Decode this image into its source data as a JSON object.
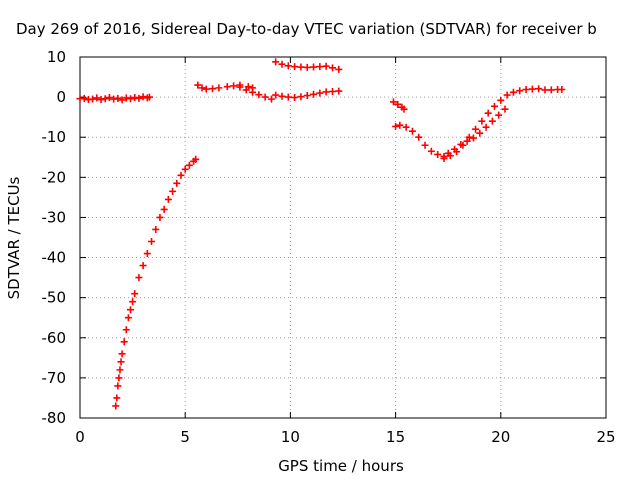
{
  "chart_data": {
    "type": "scatter",
    "title": "Day 269 of 2016, Sidereal Day-to-day VTEC variation (SDTVAR) for receiver b",
    "xlabel": "GPS time / hours",
    "ylabel": "SDTVAR / TECUs",
    "xlim": [
      0,
      25
    ],
    "ylim": [
      -80,
      10
    ],
    "xticks": [
      0,
      5,
      10,
      15,
      20,
      25
    ],
    "yticks": [
      10,
      0,
      -10,
      -20,
      -30,
      -40,
      -50,
      -60,
      -70,
      -80
    ],
    "grid": true,
    "marker": "+",
    "color": "#ff0000",
    "series": [
      {
        "points": [
          [
            0.0,
            -0.4
          ],
          [
            0.2,
            -0.3
          ],
          [
            0.4,
            -0.6
          ],
          [
            0.6,
            -0.5
          ],
          [
            0.8,
            -0.2
          ],
          [
            1.0,
            -0.6
          ],
          [
            1.2,
            -0.4
          ],
          [
            1.4,
            -0.1
          ],
          [
            1.6,
            -0.5
          ],
          [
            1.8,
            -0.3
          ],
          [
            2.0,
            -0.7
          ],
          [
            2.2,
            -0.2
          ],
          [
            2.4,
            -0.4
          ],
          [
            2.6,
            -0.1
          ],
          [
            2.8,
            -0.3
          ],
          [
            3.0,
            0.1
          ],
          [
            3.2,
            -0.2
          ],
          [
            3.3,
            0.0
          ],
          [
            1.7,
            -77
          ],
          [
            1.75,
            -75
          ],
          [
            1.8,
            -72
          ],
          [
            1.85,
            -70
          ],
          [
            1.9,
            -68
          ],
          [
            1.95,
            -66
          ],
          [
            2.0,
            -64
          ],
          [
            2.1,
            -61
          ],
          [
            2.2,
            -58
          ],
          [
            2.3,
            -55
          ],
          [
            2.4,
            -53
          ],
          [
            2.5,
            -51
          ],
          [
            2.6,
            -49
          ],
          [
            2.8,
            -45
          ],
          [
            3.0,
            -42
          ],
          [
            3.2,
            -39
          ],
          [
            3.4,
            -36
          ],
          [
            3.6,
            -33
          ],
          [
            3.8,
            -30
          ],
          [
            4.0,
            -28
          ],
          [
            4.2,
            -25.5
          ],
          [
            4.4,
            -23.5
          ],
          [
            4.6,
            -21.5
          ],
          [
            4.8,
            -19.5
          ],
          [
            5.0,
            -18
          ],
          [
            5.2,
            -17
          ],
          [
            5.4,
            -16
          ],
          [
            5.5,
            -15.5
          ],
          [
            5.6,
            3.0
          ],
          [
            5.8,
            2.3
          ],
          [
            6.0,
            2.0
          ],
          [
            6.3,
            2.1
          ],
          [
            6.6,
            2.3
          ],
          [
            7.0,
            2.6
          ],
          [
            7.3,
            2.8
          ],
          [
            7.6,
            3.0
          ],
          [
            8.0,
            2.6
          ],
          [
            8.2,
            2.3
          ],
          [
            7.6,
            2.5
          ],
          [
            7.9,
            1.8
          ],
          [
            8.2,
            1.2
          ],
          [
            8.5,
            0.6
          ],
          [
            8.8,
            0.0
          ],
          [
            9.1,
            -0.5
          ],
          [
            9.3,
            0.5
          ],
          [
            9.6,
            0.2
          ],
          [
            9.9,
            0.0
          ],
          [
            10.2,
            -0.1
          ],
          [
            10.5,
            0.1
          ],
          [
            10.8,
            0.4
          ],
          [
            11.1,
            0.7
          ],
          [
            11.4,
            1.0
          ],
          [
            11.7,
            1.3
          ],
          [
            12.0,
            1.4
          ],
          [
            12.3,
            1.5
          ],
          [
            9.3,
            8.8
          ],
          [
            9.6,
            8.2
          ],
          [
            9.9,
            7.8
          ],
          [
            10.2,
            7.6
          ],
          [
            10.5,
            7.5
          ],
          [
            10.8,
            7.4
          ],
          [
            11.1,
            7.5
          ],
          [
            11.4,
            7.6
          ],
          [
            11.7,
            7.7
          ],
          [
            12.0,
            7.3
          ],
          [
            12.3,
            6.9
          ],
          [
            14.9,
            -1.2
          ],
          [
            15.1,
            -1.8
          ],
          [
            15.3,
            -2.5
          ],
          [
            15.4,
            -3.0
          ],
          [
            15.0,
            -7.3
          ],
          [
            15.2,
            -7.0
          ],
          [
            15.5,
            -7.5
          ],
          [
            15.8,
            -8.5
          ],
          [
            16.1,
            -10.0
          ],
          [
            16.4,
            -12.0
          ],
          [
            16.7,
            -13.5
          ],
          [
            17.0,
            -14.3
          ],
          [
            17.3,
            -14.8
          ],
          [
            17.5,
            -14.0
          ],
          [
            17.8,
            -13.0
          ],
          [
            18.1,
            -11.8
          ],
          [
            18.4,
            -11.0
          ],
          [
            18.7,
            -10.2
          ],
          [
            19.0,
            -9.0
          ],
          [
            19.3,
            -7.5
          ],
          [
            19.6,
            -6.0
          ],
          [
            19.9,
            -4.5
          ],
          [
            20.2,
            -3.0
          ],
          [
            17.3,
            -15.3
          ],
          [
            17.6,
            -14.6
          ],
          [
            17.9,
            -13.6
          ],
          [
            18.2,
            -12.0
          ],
          [
            18.5,
            -10.0
          ],
          [
            18.8,
            -8.0
          ],
          [
            19.1,
            -6.0
          ],
          [
            19.4,
            -4.0
          ],
          [
            19.7,
            -2.3
          ],
          [
            20.0,
            -0.8
          ],
          [
            20.3,
            0.5
          ],
          [
            20.6,
            1.2
          ],
          [
            20.9,
            1.6
          ],
          [
            21.2,
            1.9
          ],
          [
            21.5,
            2.0
          ],
          [
            21.8,
            2.1
          ],
          [
            22.1,
            1.8
          ],
          [
            22.4,
            1.8
          ],
          [
            22.7,
            1.9
          ],
          [
            22.9,
            1.9
          ]
        ]
      }
    ]
  }
}
